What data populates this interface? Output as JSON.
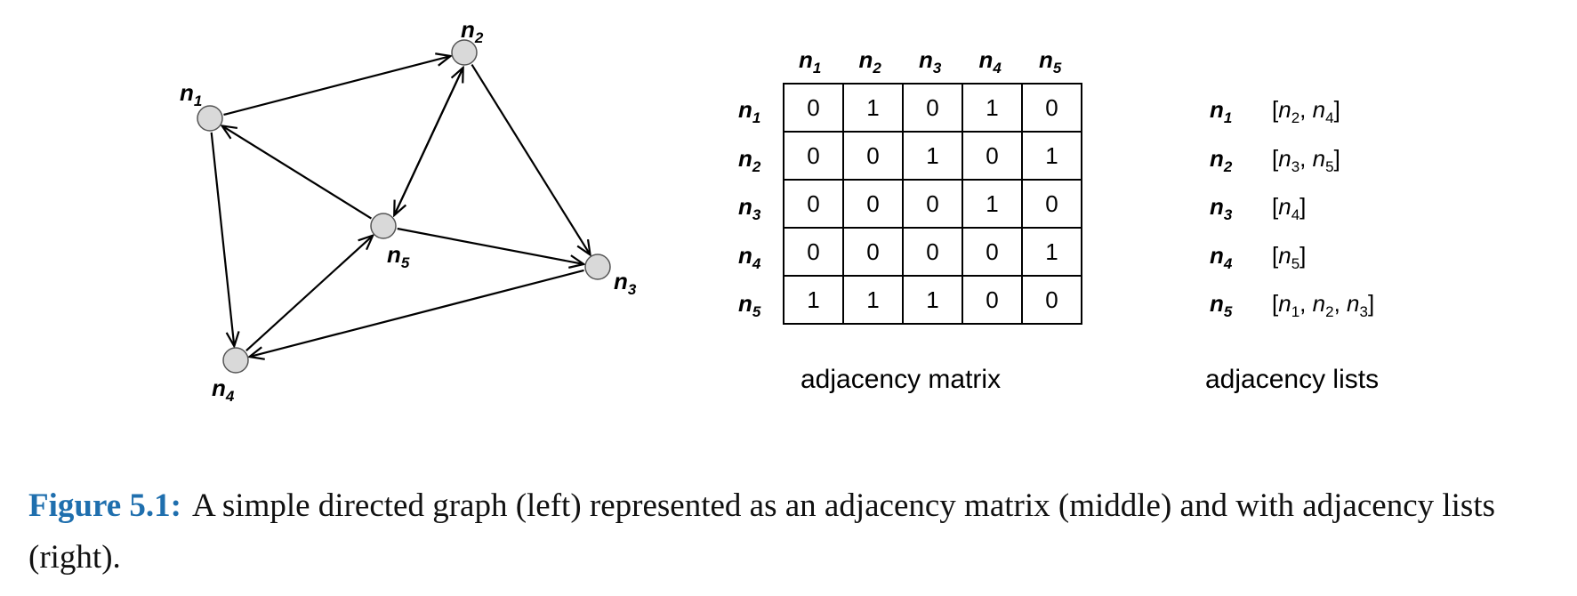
{
  "graph": {
    "nodes": [
      {
        "id": "n1",
        "base": "n",
        "sub": "1"
      },
      {
        "id": "n2",
        "base": "n",
        "sub": "2"
      },
      {
        "id": "n3",
        "base": "n",
        "sub": "3"
      },
      {
        "id": "n4",
        "base": "n",
        "sub": "4"
      },
      {
        "id": "n5",
        "base": "n",
        "sub": "5"
      }
    ],
    "edges": [
      {
        "from": "n1",
        "to": "n2"
      },
      {
        "from": "n1",
        "to": "n4"
      },
      {
        "from": "n2",
        "to": "n3"
      },
      {
        "from": "n2",
        "to": "n5"
      },
      {
        "from": "n3",
        "to": "n4"
      },
      {
        "from": "n4",
        "to": "n5"
      },
      {
        "from": "n5",
        "to": "n1"
      },
      {
        "from": "n5",
        "to": "n2"
      },
      {
        "from": "n5",
        "to": "n3"
      }
    ]
  },
  "matrix": {
    "col_headers": [
      {
        "base": "n",
        "sub": "1"
      },
      {
        "base": "n",
        "sub": "2"
      },
      {
        "base": "n",
        "sub": "3"
      },
      {
        "base": "n",
        "sub": "4"
      },
      {
        "base": "n",
        "sub": "5"
      }
    ],
    "row_headers": [
      {
        "base": "n",
        "sub": "1"
      },
      {
        "base": "n",
        "sub": "2"
      },
      {
        "base": "n",
        "sub": "3"
      },
      {
        "base": "n",
        "sub": "4"
      },
      {
        "base": "n",
        "sub": "5"
      }
    ],
    "rows": [
      [
        "0",
        "1",
        "0",
        "1",
        "0"
      ],
      [
        "0",
        "0",
        "1",
        "0",
        "1"
      ],
      [
        "0",
        "0",
        "0",
        "1",
        "0"
      ],
      [
        "0",
        "0",
        "0",
        "0",
        "1"
      ],
      [
        "1",
        "1",
        "1",
        "0",
        "0"
      ]
    ],
    "caption": "adjacency matrix"
  },
  "lists": {
    "entries": [
      {
        "node": {
          "base": "n",
          "sub": "1"
        },
        "targets": [
          {
            "base": "n",
            "sub": "2"
          },
          {
            "base": "n",
            "sub": "4"
          }
        ]
      },
      {
        "node": {
          "base": "n",
          "sub": "2"
        },
        "targets": [
          {
            "base": "n",
            "sub": "3"
          },
          {
            "base": "n",
            "sub": "5"
          }
        ]
      },
      {
        "node": {
          "base": "n",
          "sub": "3"
        },
        "targets": [
          {
            "base": "n",
            "sub": "4"
          }
        ]
      },
      {
        "node": {
          "base": "n",
          "sub": "4"
        },
        "targets": [
          {
            "base": "n",
            "sub": "5"
          }
        ]
      },
      {
        "node": {
          "base": "n",
          "sub": "5"
        },
        "targets": [
          {
            "base": "n",
            "sub": "1"
          },
          {
            "base": "n",
            "sub": "2"
          },
          {
            "base": "n",
            "sub": "3"
          }
        ]
      }
    ],
    "caption": "adjacency lists"
  },
  "figure": {
    "label": "Figure 5.1:",
    "text": "A simple directed graph (left) represented as an adjacency matrix (middle) and with adjacency lists (right).",
    "label_color": "#1f6fae"
  },
  "colors": {
    "node_fill": "#d9d9d9",
    "line": "#000000"
  }
}
